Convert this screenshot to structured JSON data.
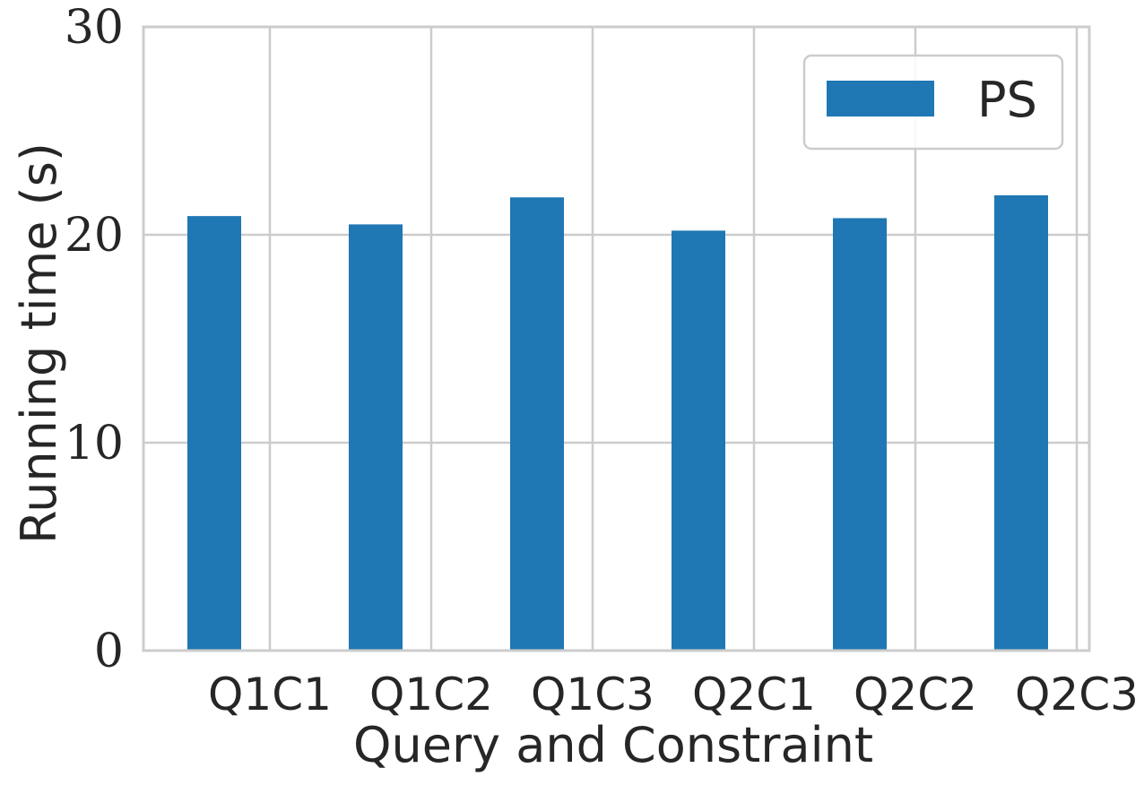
{
  "chart_data": {
    "type": "bar",
    "xlabel": "Query and Constraint",
    "ylabel": "Running time (s)",
    "categories": [
      "Q1C1",
      "Q1C2",
      "Q1C3",
      "Q2C1",
      "Q2C2",
      "Q2C3"
    ],
    "series": [
      {
        "name": "PS",
        "values": [
          20.9,
          20.5,
          21.8,
          20.2,
          20.8,
          21.9
        ]
      }
    ],
    "ylim": [
      0,
      30
    ],
    "yticks": [
      0,
      10,
      20,
      30
    ],
    "grid": true,
    "legend_position": "top-right",
    "colors": {
      "PS": "#1f77b4",
      "grid": "#cccccc",
      "text": "#262626"
    }
  }
}
